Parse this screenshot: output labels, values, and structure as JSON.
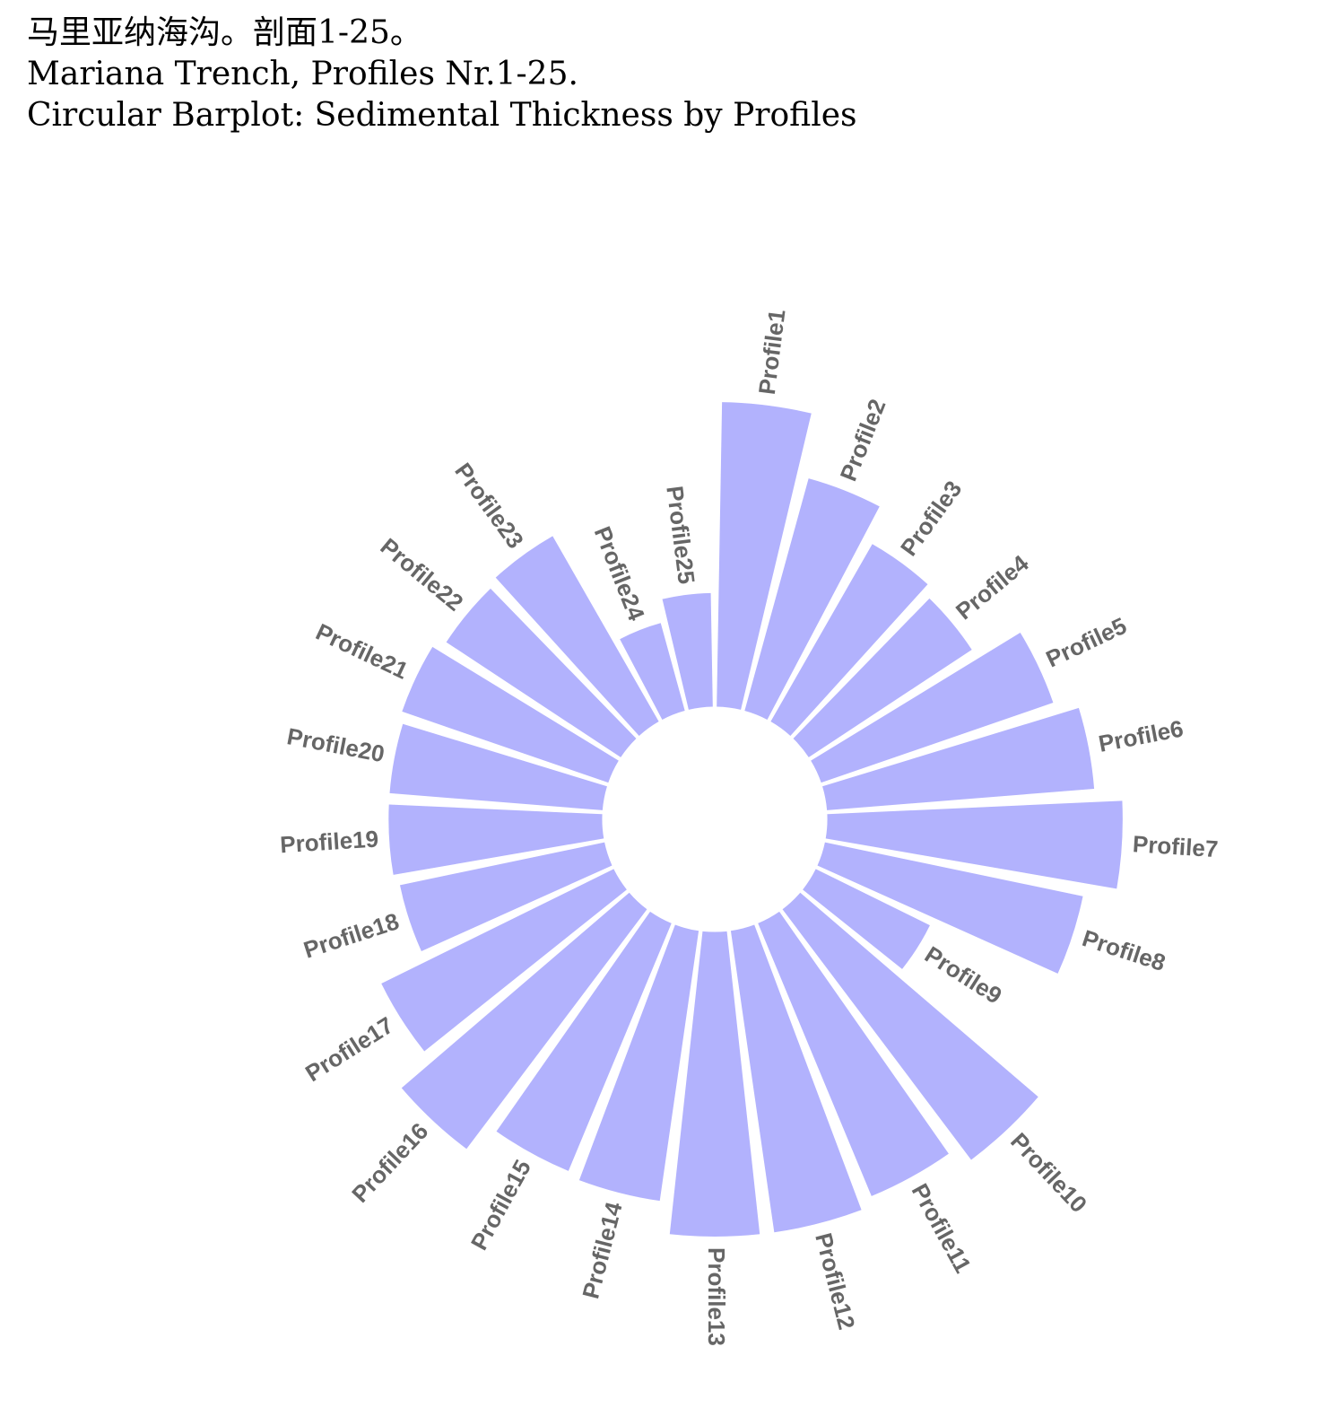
{
  "header": {
    "line1": "马里亚纳海沟。剖面1-25。",
    "line2": "Mariana Trench, Profiles Nr.1-25.",
    "line3": "Circular Barplot: Sedimental Thickness by Profiles"
  },
  "colors": {
    "bar": "#b2b2fd",
    "label": "#666666",
    "background": "#ffffff"
  },
  "chart_data": {
    "type": "bar",
    "polar": true,
    "categories": [
      "Profile1",
      "Profile2",
      "Profile3",
      "Profile4",
      "Profile5",
      "Profile6",
      "Profile7",
      "Profile8",
      "Profile9",
      "Profile10",
      "Profile11",
      "Profile12",
      "Profile13",
      "Profile14",
      "Profile15",
      "Profile16",
      "Profile17",
      "Profile18",
      "Profile19",
      "Profile20",
      "Profile21",
      "Profile22",
      "Profile23",
      "Profile24",
      "Profile25"
    ],
    "values": [
      335,
      265,
      225,
      215,
      270,
      295,
      325,
      290,
      140,
      345,
      325,
      335,
      335,
      300,
      295,
      330,
      285,
      230,
      235,
      235,
      240,
      230,
      235,
      100,
      125
    ],
    "inner_radius_fraction": 0.27,
    "ylim": [
      0,
      335
    ],
    "grid": false,
    "legend": "none"
  }
}
